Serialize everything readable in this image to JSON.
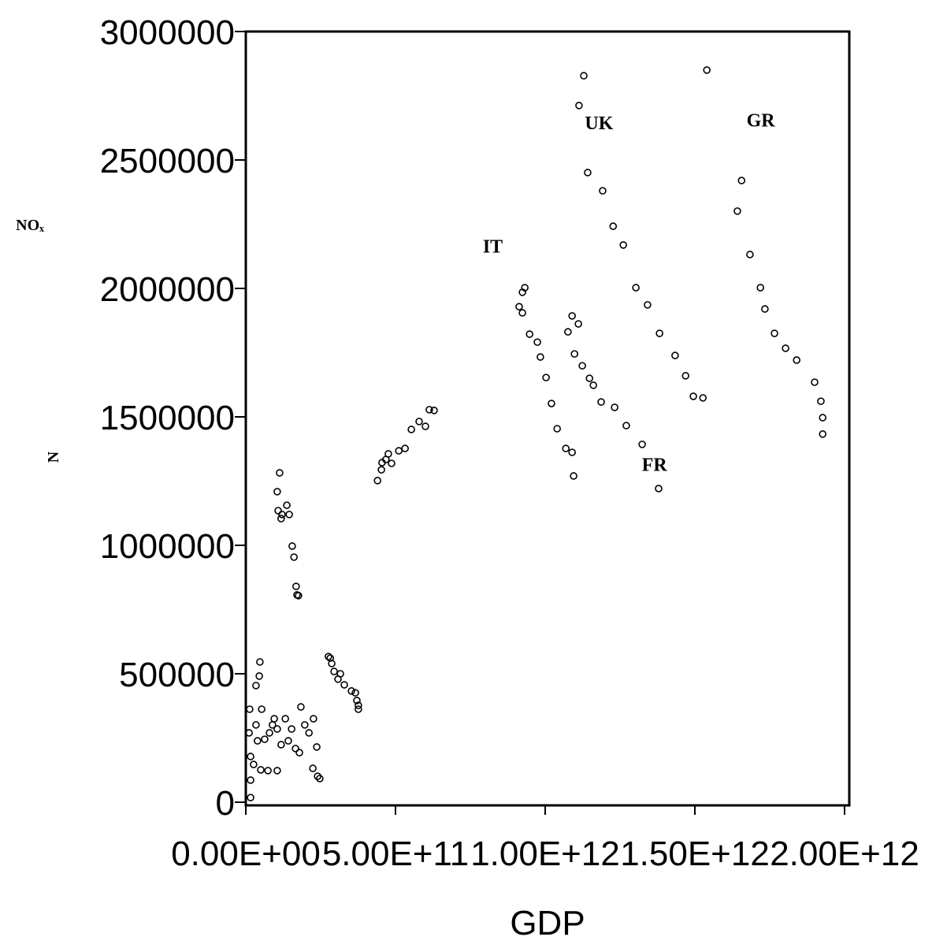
{
  "chart_data": {
    "type": "scatter",
    "xlabel": "GDP",
    "ylabel": "NOₓ",
    "ylabel_rotated": "N",
    "annotations": [
      {
        "text": "UK",
        "x": 1180000000000.0,
        "y": 2620000.0
      },
      {
        "text": "GR",
        "x": 1720000000000.0,
        "y": 2630000.0
      },
      {
        "text": "IT",
        "x": 825000000000.0,
        "y": 2140000.0
      },
      {
        "text": "FR",
        "x": 1365000000000.0,
        "y": 1290000.0
      }
    ],
    "color": "#000000",
    "grid": false,
    "xlim": [
      0,
      2000000000000.0
    ],
    "ylim": [
      0,
      3000000
    ],
    "xticks": [
      {
        "value": 0,
        "label": "0.00E+00"
      },
      {
        "value": 500000000000.0,
        "label": "5.00E+11"
      },
      {
        "value": 1000000000000.0,
        "label": "1.00E+12"
      },
      {
        "value": 1500000000000.0,
        "label": "1.50E+12"
      },
      {
        "value": 2000000000000.0,
        "label": "2.00E+12"
      }
    ],
    "yticks": [
      0,
      500000,
      1000000,
      1500000,
      2000000,
      2500000,
      3000000
    ],
    "x": [
      1129000000000.0,
      1113000000000.0,
      1142000000000.0,
      1192000000000.0,
      1227000000000.0,
      1261000000000.0,
      1303000000000.0,
      1342000000000.0,
      1382000000000.0,
      1434000000000.0,
      1469000000000.0,
      1495000000000.0,
      1527000000000.0,
      1540000000000.0,
      1656000000000.0,
      1642000000000.0,
      1684000000000.0,
      1719000000000.0,
      1734000000000.0,
      1766000000000.0,
      1803000000000.0,
      1840000000000.0,
      1900000000000.0,
      1921000000000.0,
      1927000000000.0,
      1927000000000.0,
      913000000000.0,
      932000000000.0,
      924000000000.0,
      924000000000.0,
      948000000000.0,
      974000000000.0,
      984000000000.0,
      1003000000000.0,
      1021000000000.0,
      1040000000000.0,
      1069000000000.0,
      1090000000000.0,
      1095000000000.0,
      1090000000000.0,
      1076000000000.0,
      1111000000000.0,
      1098000000000.0,
      1124000000000.0,
      1148000000000.0,
      1161000000000.0,
      1187000000000.0,
      1232000000000.0,
      1271000000000.0,
      1324000000000.0,
      1379000000000.0,
      440000000000.0,
      453000000000.0,
      455000000000.0,
      468000000000.0,
      476000000000.0,
      487000000000.0,
      511000000000.0,
      532000000000.0,
      553000000000.0,
      579000000000.0,
      600000000000.0,
      613000000000.0,
      629000000000.0,
      276000000000.0,
      282000000000.0,
      287000000000.0,
      295000000000.0,
      308000000000.0,
      316000000000.0,
      329000000000.0,
      353000000000.0,
      366000000000.0,
      371000000000.0,
      376000000000.0,
      376000000000.0,
      113000000000.0,
      105000000000.0,
      108000000000.0,
      118000000000.0,
      121000000000.0,
      137000000000.0,
      145000000000.0,
      155000000000.0,
      161000000000.0,
      168000000000.0,
      171000000000.0,
      176000000000.0,
      13000000000.0,
      11000000000.0,
      16000000000.0,
      16000000000.0,
      16000000000.0,
      26000000000.0,
      34000000000.0,
      39000000000.0,
      34000000000.0,
      45000000000.0,
      47000000000.0,
      53000000000.0,
      50000000000.0,
      74000000000.0,
      105000000000.0,
      89000000000.0,
      105000000000.0,
      118000000000.0,
      132000000000.0,
      142000000000.0,
      166000000000.0,
      179000000000.0,
      184000000000.0,
      197000000000.0,
      211000000000.0,
      226000000000.0,
      237000000000.0,
      224000000000.0,
      240000000000.0,
      247000000000.0,
      79000000000.0,
      63000000000.0,
      95000000000.0,
      153000000000.0
    ],
    "y": [
      2828000.0,
      2712000.0,
      2451000.0,
      2380000.0,
      2242000.0,
      2169000.0,
      2003000.0,
      1936000.0,
      1825000.0,
      1739000.0,
      1660000.0,
      1580000.0,
      1574000.0,
      2850000.0,
      2420000.0,
      2301000.0,
      2132000.0,
      2003000.0,
      1920000.0,
      1825000.0,
      1767000.0,
      1721000.0,
      1635000.0,
      1561000.0,
      1497000.0,
      1433000.0,
      1929000.0,
      2003000.0,
      1985000.0,
      1905000.0,
      1822000.0,
      1791000.0,
      1733000.0,
      1653000.0,
      1552000.0,
      1454000.0,
      1377000.0,
      1362000.0,
      1270000.0,
      1893000.0,
      1831000.0,
      1862000.0,
      1745000.0,
      1699000.0,
      1650000.0,
      1623000.0,
      1558000.0,
      1537000.0,
      1466000.0,
      1393000.0,
      1221000.0,
      1252000.0,
      1294000.0,
      1322000.0,
      1334000.0,
      1356000.0,
      1319000.0,
      1368000.0,
      1377000.0,
      1451000.0,
      1482000.0,
      1463000.0,
      1528000.0,
      1525000.0,
      567000.0,
      561000.0,
      540000.0,
      509000.0,
      479000.0,
      500000.0,
      457000.0,
      433000.0,
      426000.0,
      396000.0,
      377000.0,
      362000.0,
      1282000.0,
      1209000.0,
      1135000.0,
      1104000.0,
      1120000.0,
      1156000.0,
      1120000.0,
      997000.0,
      954000.0,
      840000.0,
      807000.0,
      804000.0,
      362000.0,
      270000.0,
      178000.0,
      86000.0,
      18000.0,
      147000.0,
      301000.0,
      239000.0,
      454000.0,
      491000.0,
      546000.0,
      362000.0,
      126000.0,
      123000.0,
      123000.0,
      301000.0,
      285000.0,
      224000.0,
      325000.0,
      239000.0,
      209000.0,
      193000.0,
      371000.0,
      301000.0,
      270000.0,
      325000.0,
      215000.0,
      132000.0,
      101000.0,
      92000.0,
      270000.0,
      245000.0,
      325000.0,
      285000.0
    ]
  }
}
